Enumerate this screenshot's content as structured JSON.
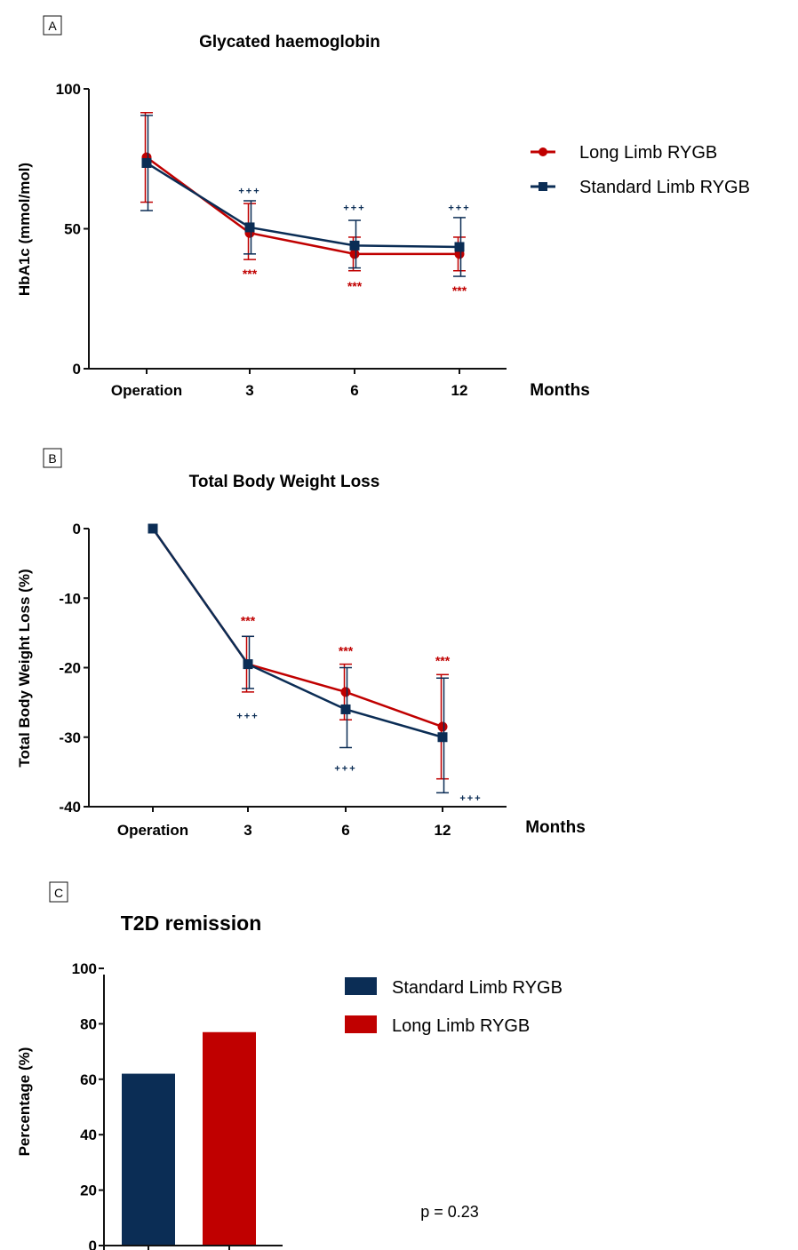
{
  "colors": {
    "long_limb": "#c00000",
    "standard_limb": "#0b2d55",
    "axis": "#111111"
  },
  "chart_data": [
    {
      "panel": "A",
      "type": "line",
      "title": "Glycated haemoglobin",
      "ylabel": "HbA1c (mmol/mol)",
      "xunit": "Months",
      "categories": [
        "Operation",
        "3",
        "6",
        "12"
      ],
      "ylim": [
        0,
        100
      ],
      "yticks": [
        "0",
        "50",
        "100"
      ],
      "legend_position": "right",
      "series": [
        {
          "name": "Long Limb RYGB",
          "color": "#c00000",
          "marker": "circle",
          "values": [
            75.5,
            48.5,
            41,
            41
          ],
          "err_upper": [
            91.5,
            59,
            47,
            47
          ],
          "err_lower": [
            59.5,
            39,
            35,
            35
          ]
        },
        {
          "name": "Standard Limb RYGB",
          "color": "#0b2d55",
          "marker": "square",
          "values": [
            73.5,
            50.5,
            44,
            43.5
          ],
          "err_upper": [
            90.5,
            60,
            53,
            54
          ],
          "err_lower": [
            56.5,
            41,
            36,
            33
          ]
        }
      ],
      "annotations": [
        {
          "category": "3",
          "text": "***",
          "color": "#c00000",
          "y": 34
        },
        {
          "category": "6",
          "text": "***",
          "color": "#c00000",
          "y": 29.5
        },
        {
          "category": "12",
          "text": "***",
          "color": "#c00000",
          "y": 28
        },
        {
          "category": "3",
          "text": "+++",
          "color": "#0b2d55",
          "y": 64
        },
        {
          "category": "6",
          "text": "+++",
          "color": "#0b2d55",
          "y": 58
        },
        {
          "category": "12",
          "text": "+++",
          "color": "#0b2d55",
          "y": 58
        }
      ]
    },
    {
      "panel": "B",
      "type": "line",
      "title": "Total Body Weight Loss",
      "ylabel": "Total Body Weight Loss  (%)",
      "xunit": "Months",
      "categories": [
        "Operation",
        "3",
        "6",
        "12"
      ],
      "ylim": [
        -40,
        0
      ],
      "yticks": [
        "0",
        "-10",
        "-20",
        "-30",
        "-40"
      ],
      "series": [
        {
          "name": "Long Limb RYGB",
          "color": "#c00000",
          "marker": "circle",
          "values": [
            0,
            -19.5,
            -23.5,
            -28.5
          ],
          "err_upper": [
            0,
            -15.5,
            -19.5,
            -21
          ],
          "err_lower": [
            0,
            -23.5,
            -27.5,
            -36
          ]
        },
        {
          "name": "Standard Limb RYGB",
          "color": "#0b2d55",
          "marker": "square",
          "values": [
            0,
            -19.5,
            -26,
            -30
          ],
          "err_upper": [
            0,
            -15.5,
            -20,
            -21.5
          ],
          "err_lower": [
            0,
            -23,
            -31.5,
            -38
          ]
        }
      ],
      "annotations": [
        {
          "category": "3",
          "text": "***",
          "color": "#c00000",
          "y": -13.2
        },
        {
          "category": "6",
          "text": "***",
          "color": "#c00000",
          "y": -17.6
        },
        {
          "category": "12",
          "text": "***",
          "color": "#c00000",
          "y": -19
        },
        {
          "category": "3",
          "text": "+++",
          "color": "#0b2d55",
          "y": -26.8
        },
        {
          "category": "6",
          "text": "+++",
          "color": "#0b2d55",
          "y": -34.3
        },
        {
          "category": "12",
          "text": "+++",
          "color": "#0b2d55",
          "y": -38.6,
          "offset": "right"
        }
      ]
    },
    {
      "panel": "C",
      "type": "bar",
      "title": "T2D remission",
      "ylabel": "Percentage (%)",
      "ylim": [
        0,
        100
      ],
      "yticks": [
        "0",
        "20",
        "40",
        "60",
        "80",
        "100"
      ],
      "legend_position": "right",
      "series": [
        {
          "name": "Standard Limb RYGB",
          "color": "#0b2d55",
          "values": [
            62
          ]
        },
        {
          "name": "Long Limb RYGB",
          "color": "#c00000",
          "values": [
            77
          ]
        }
      ],
      "annotations": [
        {
          "text": "p = 0.23"
        }
      ]
    }
  ]
}
